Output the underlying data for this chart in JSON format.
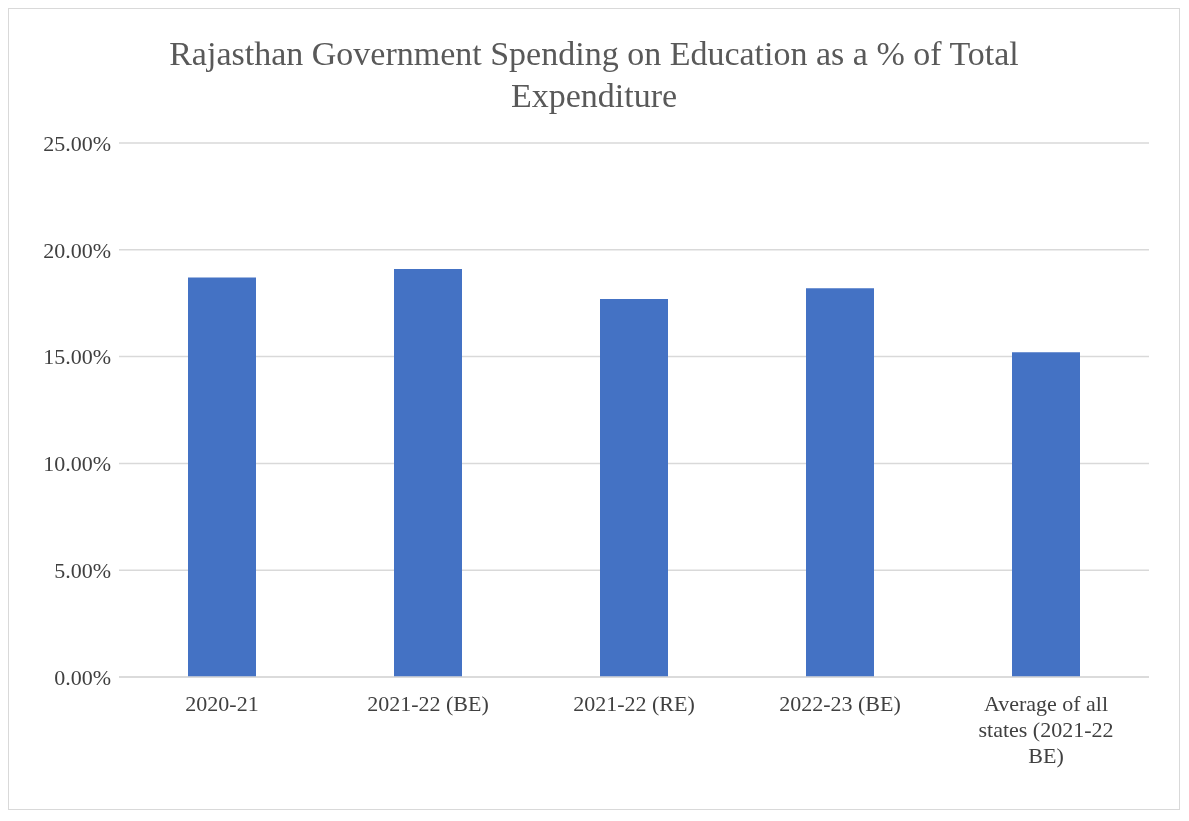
{
  "chart_data": {
    "type": "bar",
    "title": "Rajasthan Government Spending on Education as a % of Total Expenditure",
    "categories": [
      "2020-21",
      "2021-22 (BE)",
      "2021-22 (RE)",
      "2022-23 (BE)",
      "Average of all states (2021-22 BE)"
    ],
    "values": [
      18.7,
      19.1,
      17.7,
      18.2,
      15.2
    ],
    "color": "#4472c4",
    "ylim": [
      0,
      25
    ],
    "yticks": [
      {
        "value": 0,
        "label": "0.00%"
      },
      {
        "value": 5,
        "label": "5.00%"
      },
      {
        "value": 10,
        "label": "10.00%"
      },
      {
        "value": 15,
        "label": "15.00%"
      },
      {
        "value": 20,
        "label": "20.00%"
      },
      {
        "value": 25,
        "label": "25.00%"
      }
    ],
    "grid": "y"
  }
}
